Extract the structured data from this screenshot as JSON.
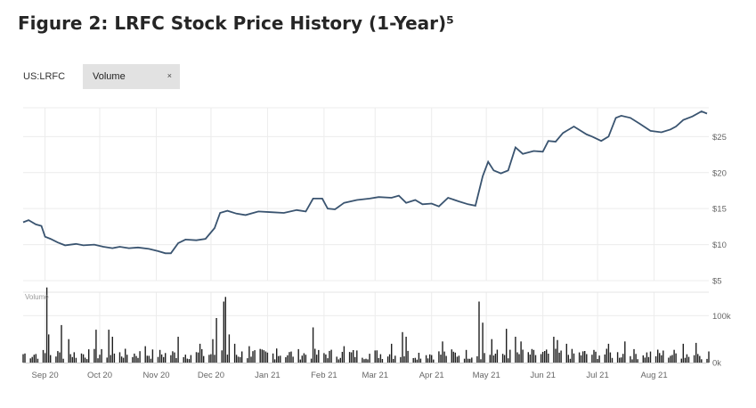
{
  "header": {
    "title": "Figure 2: LRFC Stock Price History (1-Year)⁵"
  },
  "toolbar": {
    "ticker": "US:LRFC",
    "study_chip": {
      "label": "Volume",
      "close": "×"
    }
  },
  "colors": {
    "price_line": "#3a5470",
    "volume_bar": "#1f1f1f",
    "grid": "#ececec"
  },
  "chart_data": [
    {
      "type": "line",
      "title": "",
      "x_range": [
        "2020-08-20",
        "2021-08-31"
      ],
      "ylim": [
        5,
        29
      ],
      "y_ticks": [
        {
          "value": 5,
          "label": "$5"
        },
        {
          "value": 10,
          "label": "$10"
        },
        {
          "value": 15,
          "label": "$15"
        },
        {
          "value": 20,
          "label": "$20"
        },
        {
          "value": 25,
          "label": "$25"
        }
      ],
      "x_ticks": [
        {
          "date": "2020-09-01",
          "label": "Sep 20"
        },
        {
          "date": "2020-10-01",
          "label": "Oct 20"
        },
        {
          "date": "2020-11-01",
          "label": "Nov 20"
        },
        {
          "date": "2020-12-01",
          "label": "Dec 20"
        },
        {
          "date": "2021-01-01",
          "label": "Jan 21"
        },
        {
          "date": "2021-02-01",
          "label": "Feb 21"
        },
        {
          "date": "2021-03-01",
          "label": "Mar 21"
        },
        {
          "date": "2021-04-01",
          "label": "Apr 21"
        },
        {
          "date": "2021-05-01",
          "label": "May 21"
        },
        {
          "date": "2021-06-01",
          "label": "Jun 21"
        },
        {
          "date": "2021-07-01",
          "label": "Jul 21"
        },
        {
          "date": "2021-08-01",
          "label": "Aug 21"
        }
      ],
      "grid": true,
      "series": [
        {
          "points": [
            [
              "2020-08-20",
              13.1
            ],
            [
              "2020-08-23",
              13.4
            ],
            [
              "2020-08-27",
              12.8
            ],
            [
              "2020-08-30",
              12.6
            ],
            [
              "2020-09-01",
              11.1
            ],
            [
              "2020-09-04",
              10.8
            ],
            [
              "2020-09-08",
              10.3
            ],
            [
              "2020-09-12",
              9.9
            ],
            [
              "2020-09-18",
              10.1
            ],
            [
              "2020-09-22",
              9.9
            ],
            [
              "2020-09-28",
              10.0
            ],
            [
              "2020-10-03",
              9.7
            ],
            [
              "2020-10-08",
              9.5
            ],
            [
              "2020-10-12",
              9.7
            ],
            [
              "2020-10-17",
              9.5
            ],
            [
              "2020-10-22",
              9.6
            ],
            [
              "2020-10-28",
              9.4
            ],
            [
              "2020-11-02",
              9.1
            ],
            [
              "2020-11-06",
              8.8
            ],
            [
              "2020-11-09",
              8.8
            ],
            [
              "2020-11-13",
              10.2
            ],
            [
              "2020-11-17",
              10.7
            ],
            [
              "2020-11-23",
              10.6
            ],
            [
              "2020-11-28",
              10.8
            ],
            [
              "2020-12-03",
              12.3
            ],
            [
              "2020-12-06",
              14.4
            ],
            [
              "2020-12-10",
              14.7
            ],
            [
              "2020-12-15",
              14.3
            ],
            [
              "2020-12-20",
              14.1
            ],
            [
              "2020-12-27",
              14.6
            ],
            [
              "2021-01-03",
              14.5
            ],
            [
              "2021-01-10",
              14.4
            ],
            [
              "2021-01-17",
              14.8
            ],
            [
              "2021-01-22",
              14.6
            ],
            [
              "2021-01-26",
              16.4
            ],
            [
              "2021-01-31",
              16.4
            ],
            [
              "2021-02-03",
              15.0
            ],
            [
              "2021-02-07",
              14.9
            ],
            [
              "2021-02-12",
              15.8
            ],
            [
              "2021-02-19",
              16.2
            ],
            [
              "2021-02-26",
              16.4
            ],
            [
              "2021-03-03",
              16.6
            ],
            [
              "2021-03-10",
              16.5
            ],
            [
              "2021-03-14",
              16.8
            ],
            [
              "2021-03-18",
              15.8
            ],
            [
              "2021-03-23",
              16.2
            ],
            [
              "2021-03-27",
              15.6
            ],
            [
              "2021-04-01",
              15.7
            ],
            [
              "2021-04-05",
              15.3
            ],
            [
              "2021-04-10",
              16.5
            ],
            [
              "2021-04-16",
              16.0
            ],
            [
              "2021-04-21",
              15.6
            ],
            [
              "2021-04-25",
              15.4
            ],
            [
              "2021-04-29",
              19.5
            ],
            [
              "2021-05-02",
              21.5
            ],
            [
              "2021-05-05",
              20.3
            ],
            [
              "2021-05-09",
              19.9
            ],
            [
              "2021-05-13",
              20.3
            ],
            [
              "2021-05-17",
              23.5
            ],
            [
              "2021-05-21",
              22.6
            ],
            [
              "2021-05-27",
              23.0
            ],
            [
              "2021-06-01",
              22.9
            ],
            [
              "2021-06-04",
              24.4
            ],
            [
              "2021-06-08",
              24.3
            ],
            [
              "2021-06-12",
              25.5
            ],
            [
              "2021-06-18",
              26.4
            ],
            [
              "2021-06-25",
              25.3
            ],
            [
              "2021-06-28",
              25.0
            ],
            [
              "2021-07-03",
              24.4
            ],
            [
              "2021-07-07",
              25.0
            ],
            [
              "2021-07-11",
              27.6
            ],
            [
              "2021-07-14",
              27.9
            ],
            [
              "2021-07-19",
              27.6
            ],
            [
              "2021-07-24",
              26.8
            ],
            [
              "2021-07-30",
              25.8
            ],
            [
              "2021-08-05",
              25.6
            ],
            [
              "2021-08-10",
              26.0
            ],
            [
              "2021-08-13",
              26.4
            ],
            [
              "2021-08-17",
              27.3
            ],
            [
              "2021-08-22",
              27.8
            ],
            [
              "2021-08-27",
              28.5
            ],
            [
              "2021-08-30",
              28.2
            ]
          ]
        }
      ]
    },
    {
      "type": "bar",
      "ylabel": "Volume",
      "ylim": [
        0,
        150000
      ],
      "y_ticks": [
        {
          "value": 0,
          "label": "0k"
        },
        {
          "value": 100000,
          "label": "100k"
        }
      ],
      "x_range": [
        "2020-08-20",
        "2021-08-31"
      ],
      "baseline": 18000,
      "bars": [
        [
          "2020-09-02",
          160000
        ],
        [
          "2020-09-03",
          60000
        ],
        [
          "2020-09-10",
          80000
        ],
        [
          "2020-09-14",
          50000
        ],
        [
          "2020-09-29",
          70000
        ],
        [
          "2020-10-06",
          70000
        ],
        [
          "2020-10-08",
          55000
        ],
        [
          "2020-10-26",
          35000
        ],
        [
          "2020-11-13",
          55000
        ],
        [
          "2020-11-15",
          50000
        ],
        [
          "2020-11-25",
          40000
        ],
        [
          "2020-12-02",
          50000
        ],
        [
          "2020-12-04",
          95000
        ],
        [
          "2020-12-06",
          78000
        ],
        [
          "2020-12-08",
          130000
        ],
        [
          "2020-12-09",
          140000
        ],
        [
          "2020-12-11",
          60000
        ],
        [
          "2020-12-14",
          40000
        ],
        [
          "2020-12-22",
          35000
        ],
        [
          "2021-01-06",
          30000
        ],
        [
          "2021-01-26",
          75000
        ],
        [
          "2021-02-12",
          35000
        ],
        [
          "2021-03-10",
          40000
        ],
        [
          "2021-03-16",
          65000
        ],
        [
          "2021-03-18",
          55000
        ],
        [
          "2021-04-07",
          45000
        ],
        [
          "2021-04-27",
          130000
        ],
        [
          "2021-04-29",
          85000
        ],
        [
          "2021-05-04",
          50000
        ],
        [
          "2021-05-12",
          72000
        ],
        [
          "2021-05-17",
          55000
        ],
        [
          "2021-05-20",
          45000
        ],
        [
          "2021-06-07",
          55000
        ],
        [
          "2021-06-09",
          48000
        ],
        [
          "2021-06-14",
          40000
        ],
        [
          "2021-07-07",
          40000
        ],
        [
          "2021-07-16",
          45000
        ],
        [
          "2021-08-17",
          40000
        ],
        [
          "2021-08-24",
          42000
        ],
        [
          "2021-08-28",
          35000
        ]
      ]
    }
  ]
}
